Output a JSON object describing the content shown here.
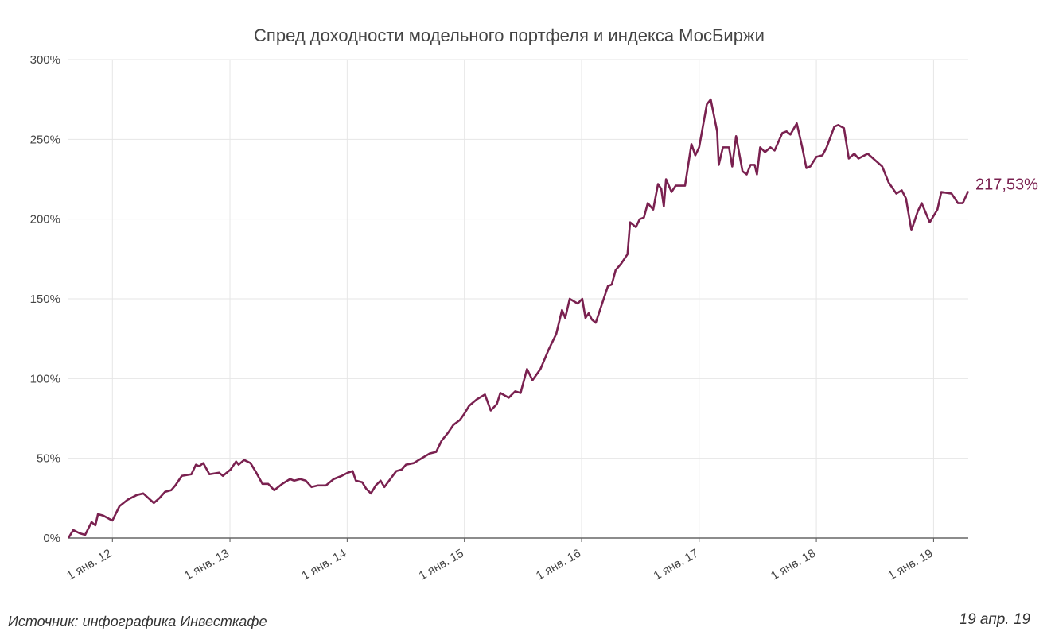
{
  "chart_data": {
    "type": "line",
    "title": "Спред доходности модельного портфеля и индекса МосБиржи",
    "source": "Источник: инфографика Инвесткафе",
    "date": "19 апр. 19",
    "color": "#7a2150",
    "grid": true,
    "xlim": [
      "2011-08-17",
      "2019-04-19"
    ],
    "xticks": [
      {
        "value": "2012-01-01",
        "label": "1 янв. 12"
      },
      {
        "value": "2013-01-01",
        "label": "1 янв. 13"
      },
      {
        "value": "2014-01-01",
        "label": "1 янв. 14"
      },
      {
        "value": "2015-01-01",
        "label": "1 янв. 15"
      },
      {
        "value": "2016-01-01",
        "label": "1 янв. 16"
      },
      {
        "value": "2017-01-01",
        "label": "1 янв. 17"
      },
      {
        "value": "2018-01-01",
        "label": "1 янв. 18"
      },
      {
        "value": "2019-01-01",
        "label": "1 янв. 19"
      }
    ],
    "ylim": [
      0,
      300
    ],
    "yticks": [
      {
        "value": 0,
        "label": "0%"
      },
      {
        "value": 50,
        "label": "50%"
      },
      {
        "value": 100,
        "label": "100%"
      },
      {
        "value": 150,
        "label": "150%"
      },
      {
        "value": 200,
        "label": "200%"
      },
      {
        "value": 250,
        "label": "250%"
      },
      {
        "value": 300,
        "label": "300%"
      }
    ],
    "x": [
      "2011-08-17",
      "2011-09-01",
      "2011-09-21",
      "2011-10-08",
      "2011-10-28",
      "2011-11-09",
      "2011-11-17",
      "2011-12-04",
      "2011-12-22",
      "2012-01-01",
      "2012-01-23",
      "2012-02-17",
      "2012-03-17",
      "2012-04-06",
      "2012-05-09",
      "2012-05-26",
      "2012-06-13",
      "2012-07-02",
      "2012-07-15",
      "2012-08-04",
      "2012-09-03",
      "2012-09-17",
      "2012-09-27",
      "2012-10-10",
      "2012-10-29",
      "2012-11-28",
      "2012-12-10",
      "2013-01-03",
      "2013-01-20",
      "2013-01-28",
      "2013-02-14",
      "2013-03-06",
      "2013-03-24",
      "2013-04-12",
      "2013-04-30",
      "2013-05-19",
      "2013-06-13",
      "2013-07-07",
      "2013-07-20",
      "2013-08-08",
      "2013-08-25",
      "2013-09-12",
      "2013-10-02",
      "2013-10-27",
      "2013-11-20",
      "2013-12-15",
      "2014-01-03",
      "2014-01-18",
      "2014-01-28",
      "2014-02-17",
      "2014-03-01",
      "2014-03-16",
      "2014-03-31",
      "2014-04-15",
      "2014-04-27",
      "2014-05-19",
      "2014-06-03",
      "2014-06-20",
      "2014-07-03",
      "2014-07-27",
      "2014-08-21",
      "2014-09-15",
      "2014-10-05",
      "2014-10-22",
      "2014-11-11",
      "2014-11-28",
      "2014-12-18",
      "2015-01-01",
      "2015-01-16",
      "2015-02-09",
      "2015-03-06",
      "2015-03-24",
      "2015-04-12",
      "2015-04-23",
      "2015-05-19",
      "2015-06-08",
      "2015-06-25",
      "2015-07-15",
      "2015-08-01",
      "2015-08-26",
      "2015-09-20",
      "2015-10-14",
      "2015-11-01",
      "2015-11-11",
      "2015-11-25",
      "2015-12-20",
      "2016-01-03",
      "2016-01-13",
      "2016-01-23",
      "2016-02-02",
      "2016-02-14",
      "2016-03-23",
      "2016-04-04",
      "2016-04-16",
      "2016-05-03",
      "2016-05-23",
      "2016-05-31",
      "2016-06-18",
      "2016-06-30",
      "2016-07-13",
      "2016-07-25",
      "2016-08-11",
      "2016-08-26",
      "2016-09-05",
      "2016-09-13",
      "2016-09-20",
      "2016-10-07",
      "2016-10-20",
      "2016-11-18",
      "2016-12-08",
      "2016-12-20",
      "2017-01-01",
      "2017-01-25",
      "2017-02-06",
      "2017-02-26",
      "2017-03-03",
      "2017-03-16",
      "2017-04-04",
      "2017-04-14",
      "2017-04-26",
      "2017-05-16",
      "2017-05-29",
      "2017-06-10",
      "2017-06-23",
      "2017-06-30",
      "2017-07-10",
      "2017-07-25",
      "2017-08-11",
      "2017-08-24",
      "2017-09-17",
      "2017-09-30",
      "2017-10-12",
      "2017-11-01",
      "2017-11-18",
      "2017-12-01",
      "2017-12-13",
      "2018-01-01",
      "2018-01-20",
      "2018-02-02",
      "2018-02-26",
      "2018-03-10",
      "2018-03-28",
      "2018-04-12",
      "2018-04-29",
      "2018-05-12",
      "2018-06-10",
      "2018-07-25",
      "2018-08-14",
      "2018-09-07",
      "2018-09-24",
      "2018-10-07",
      "2018-10-24",
      "2018-11-13",
      "2018-11-25",
      "2018-12-20",
      "2019-01-13",
      "2019-01-25",
      "2019-02-26",
      "2019-03-18",
      "2019-04-02",
      "2019-04-19"
    ],
    "values": [
      0,
      5,
      3,
      2,
      10,
      8,
      15,
      14,
      12,
      11,
      20,
      24,
      27,
      28,
      22,
      25,
      29,
      30,
      33,
      39,
      40,
      46,
      45,
      47,
      40,
      41,
      39,
      43,
      48,
      46,
      49,
      47,
      41,
      34,
      34,
      30,
      34,
      37,
      36,
      37,
      36,
      32,
      33,
      33,
      37,
      39,
      41,
      42,
      36,
      35,
      31,
      28,
      33,
      36,
      32,
      38,
      42,
      43,
      46,
      47,
      50,
      53,
      54,
      61,
      66,
      71,
      74,
      78,
      83,
      87,
      90,
      80,
      84,
      91,
      88,
      92,
      91,
      106,
      99,
      106,
      118,
      128,
      143,
      138,
      150,
      147,
      150,
      138,
      141,
      137,
      135,
      158,
      159,
      168,
      172,
      178,
      198,
      195,
      200,
      201,
      210,
      206,
      222,
      219,
      208,
      225,
      217,
      221,
      221,
      247,
      240,
      245,
      272,
      275,
      255,
      234,
      245,
      245,
      233,
      252,
      230,
      228,
      234,
      234,
      228,
      245,
      242,
      245,
      243,
      254,
      255,
      253,
      260,
      245,
      232,
      233,
      239,
      240,
      245,
      258,
      259,
      257,
      238,
      241,
      238,
      241,
      233,
      223,
      216,
      218,
      213,
      193,
      205,
      210,
      198,
      206,
      217,
      216,
      210,
      210,
      217.53
    ],
    "value_labels": [
      null,
      null,
      null,
      null,
      null,
      null,
      null,
      null,
      null,
      null,
      null,
      null,
      null,
      null,
      null,
      null,
      null,
      null,
      null,
      null,
      null,
      null,
      null,
      null,
      null,
      null,
      null,
      null,
      null,
      null,
      null,
      null,
      null,
      null,
      null,
      null,
      null,
      null,
      null,
      null,
      null,
      null,
      null,
      null,
      null,
      null,
      null,
      null,
      null,
      null,
      null,
      null,
      null,
      null,
      null,
      null,
      null,
      null,
      null,
      null,
      null,
      null,
      null,
      null,
      null,
      null,
      null,
      null,
      null,
      null,
      null,
      null,
      null,
      null,
      null,
      null,
      null,
      null,
      null,
      null,
      null,
      null,
      null,
      null,
      null,
      null,
      null,
      null,
      null,
      null,
      null,
      null,
      null,
      null,
      null,
      null,
      null,
      null,
      null,
      null,
      null,
      null,
      null,
      null,
      null,
      null,
      null,
      null,
      null,
      null,
      null,
      null,
      null,
      null,
      null,
      null,
      null,
      null,
      null,
      null,
      null,
      null,
      null,
      null,
      null,
      null,
      null,
      null,
      null,
      null,
      null,
      null,
      null,
      null,
      null,
      null,
      null,
      null,
      null,
      null,
      null,
      null,
      null,
      null,
      null,
      null,
      null,
      null,
      null,
      null,
      null,
      null,
      null,
      null,
      null,
      null,
      null,
      null,
      null,
      null,
      "217,53%"
    ]
  }
}
